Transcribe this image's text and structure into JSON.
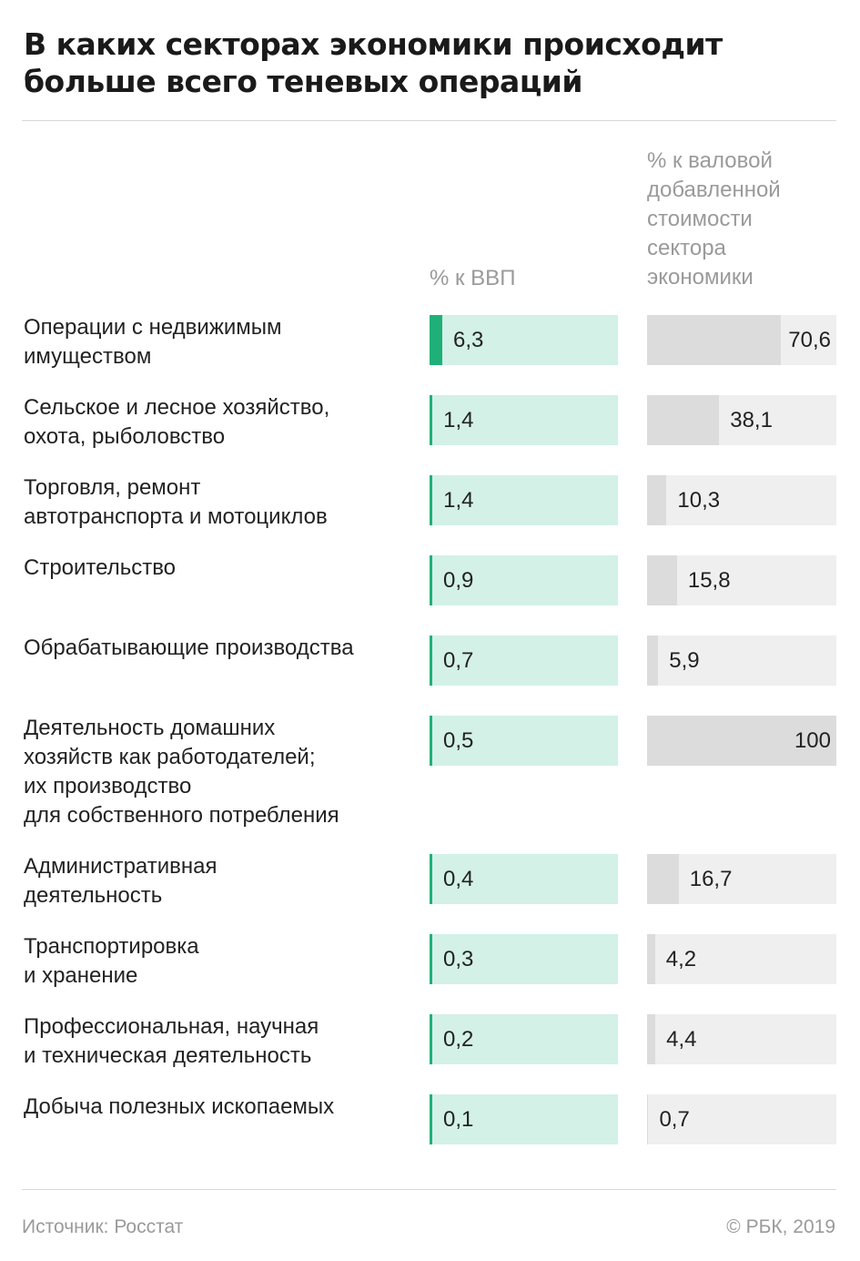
{
  "title": "В каких секторах экономики происходит больше всего теневых операций",
  "columns": {
    "gdp": "% к ВВП",
    "gva": "% к валовой добавленной стоимости сектора экономики"
  },
  "colors": {
    "gdp_bg": "#d3f1e6",
    "gdp_fill": "#1fb079",
    "gva_bg": "#efefef",
    "gva_fill": "#dcdcdc"
  },
  "chart_data": {
    "type": "bar",
    "categories": [
      "Операции с недвижимым имуществом",
      "Сельское и лесное хозяйство, охота, рыболовство",
      "Торговля, ремонт автотранспорта и мотоциклов",
      "Строительство",
      "Обрабатывающие производства",
      "Деятельность домашних хозяйств как работодателей; их производство для собственного потребления",
      "Административная деятельность",
      "Транспортировка и хранение",
      "Профессиональная, научная и техническая деятельность",
      "Добыча полезных ископаемых"
    ],
    "category_lines": [
      [
        "Операции с недвижимым",
        "имуществом"
      ],
      [
        "Сельское и лесное хозяйство,",
        "охота, рыболовство"
      ],
      [
        "Торговля, ремонт",
        "автотранспорта и мотоциклов"
      ],
      [
        "Строительство"
      ],
      [
        "Обрабатывающие производства"
      ],
      [
        "Деятельность домашних",
        "хозяйств как работодателей;",
        "их производство",
        "для собственного потребления"
      ],
      [
        "Административная",
        "деятельность"
      ],
      [
        "Транспортировка",
        "и хранение"
      ],
      [
        "Профессиональная, научная",
        "и техническая деятельность"
      ],
      [
        "Добыча полезных ископаемых"
      ]
    ],
    "series": [
      {
        "name": "% к ВВП",
        "values": [
          6.3,
          1.4,
          1.4,
          0.9,
          0.7,
          0.5,
          0.4,
          0.3,
          0.2,
          0.1
        ],
        "labels": [
          "6,3",
          "1,4",
          "1,4",
          "0,9",
          "0,7",
          "0,5",
          "0,4",
          "0,3",
          "0,2",
          "0,1"
        ],
        "max": 100
      },
      {
        "name": "% к валовой добавленной стоимости сектора экономики",
        "values": [
          70.6,
          38.1,
          10.3,
          15.8,
          5.9,
          100,
          16.7,
          4.2,
          4.4,
          0.7
        ],
        "labels": [
          "70,6",
          "38,1",
          "10,3",
          "15,8",
          "5,9",
          "100",
          "16,7",
          "4,2",
          "4,4",
          "0,7"
        ],
        "max": 100
      }
    ]
  },
  "footer": {
    "source": "Источник: Росстат",
    "copyright": "© РБК, 2019"
  }
}
